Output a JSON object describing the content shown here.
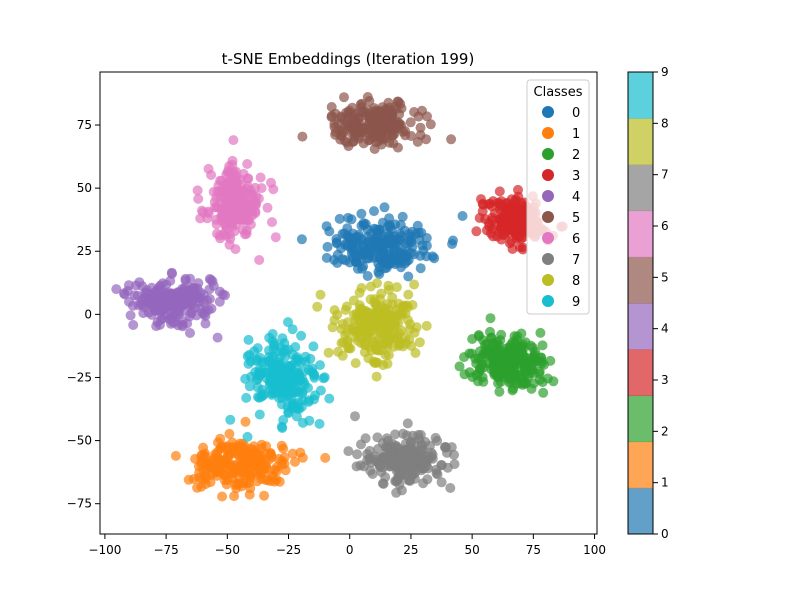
{
  "chart_data": {
    "type": "scatter",
    "title": "t-SNE Embeddings (Iteration 199)",
    "xlabel": "",
    "ylabel": "",
    "xlim": [
      -102,
      101
    ],
    "ylim": [
      -87,
      96
    ],
    "xticks": [
      -100,
      -75,
      -50,
      -25,
      0,
      25,
      50,
      75,
      100
    ],
    "yticks": [
      -75,
      -50,
      -25,
      0,
      25,
      50,
      75
    ],
    "grid": false,
    "legend": {
      "title": "Classes",
      "placement": "top-right",
      "entries": [
        "0",
        "1",
        "2",
        "3",
        "4",
        "5",
        "6",
        "7",
        "8",
        "9"
      ]
    },
    "colorbar": {
      "ticks": [
        "0",
        "1",
        "2",
        "3",
        "4",
        "5",
        "6",
        "7",
        "8",
        "9"
      ],
      "range": [
        0,
        9
      ]
    },
    "colors": [
      "#1f77b4",
      "#ff7f0e",
      "#2ca02c",
      "#d62728",
      "#9467bd",
      "#8c564b",
      "#e377c2",
      "#7f7f7f",
      "#bcbd22",
      "#17becf"
    ],
    "marker_alpha": 0.7,
    "clusters": [
      {
        "class": "0",
        "center": [
          13,
          27
        ],
        "spread": [
          15,
          9
        ]
      },
      {
        "class": "1",
        "center": [
          -45,
          -60
        ],
        "spread": [
          18,
          9
        ]
      },
      {
        "class": "2",
        "center": [
          64,
          -19
        ],
        "spread": [
          13,
          9
        ]
      },
      {
        "class": "3",
        "center": [
          68,
          37
        ],
        "spread": [
          10,
          7
        ]
      },
      {
        "class": "4",
        "center": [
          -72,
          5
        ],
        "spread": [
          14,
          7
        ]
      },
      {
        "class": "5",
        "center": [
          10,
          75
        ],
        "spread": [
          14,
          7
        ]
      },
      {
        "class": "6",
        "center": [
          -47,
          45
        ],
        "spread": [
          9,
          12
        ]
      },
      {
        "class": "7",
        "center": [
          22,
          -57
        ],
        "spread": [
          14,
          8
        ]
      },
      {
        "class": "8",
        "center": [
          11,
          -5
        ],
        "spread": [
          14,
          11
        ]
      },
      {
        "class": "9",
        "center": [
          -27,
          -25
        ],
        "spread": [
          12,
          12
        ]
      }
    ]
  }
}
